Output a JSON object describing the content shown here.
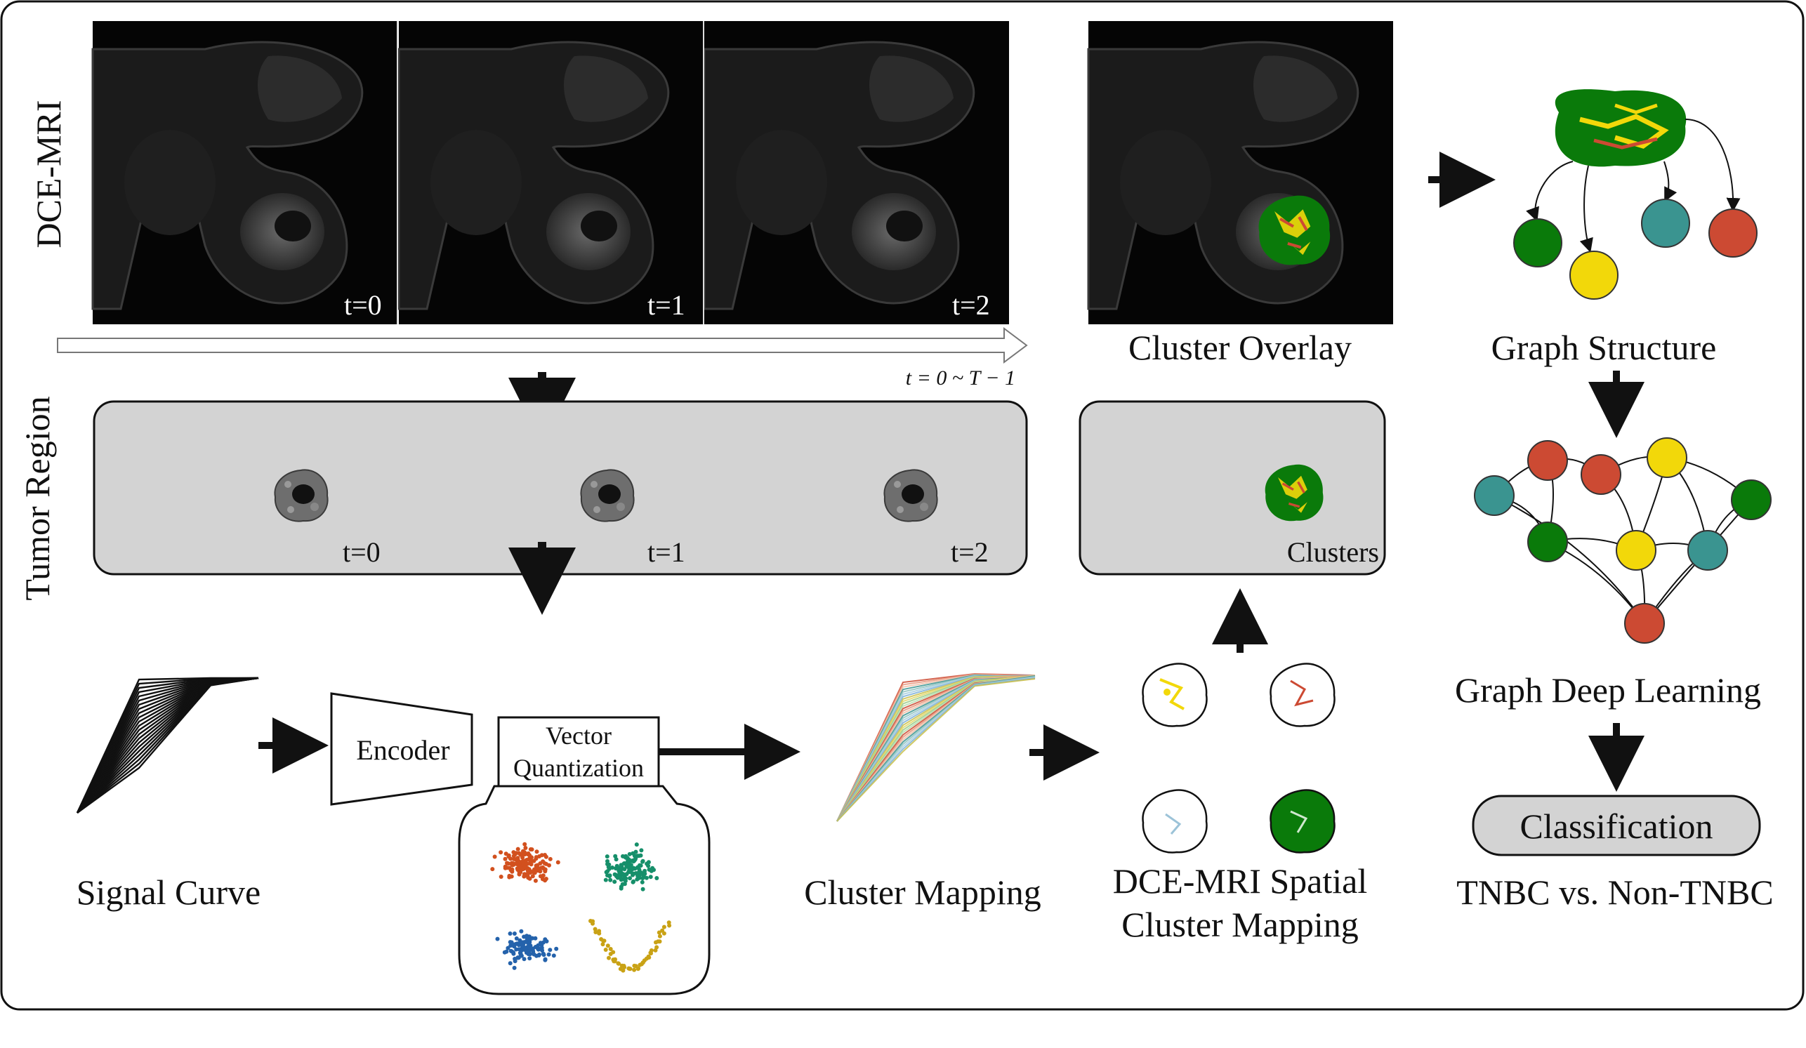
{
  "row_labels": {
    "top": "DCE-MRI",
    "middle": "Tumor Region"
  },
  "time_labels": [
    "t=0",
    "t=1",
    "t=2"
  ],
  "time_axis_label": "t = 0 ~ T − 1",
  "cluster_overlay_label": "Cluster Overlay",
  "clusters_label": "Clusters",
  "graph_structure_label": "Graph Structure",
  "graph_deep_learning_label": "Graph Deep Learning",
  "classification_label": "Classification",
  "result_label": "TNBC vs. Non-TNBC",
  "signal_curve_label": "Signal Curve",
  "encoder_label": "Encoder",
  "vq_label_line1": "Vector",
  "vq_label_line2": "Quantization",
  "cluster_mapping_label": "Cluster Mapping",
  "spatial_mapping_line1": "DCE-MRI Spatial",
  "spatial_mapping_line2": "Cluster Mapping",
  "colors": {
    "green": "#0a7a0a",
    "yellow": "#f2d80a",
    "teal": "#3a9490",
    "red": "#cc4a33",
    "scatter_orange": "#d2501e",
    "scatter_green": "#168f6a",
    "scatter_blue": "#2462ab",
    "scatter_yellow": "#c9a215",
    "panel_gray": "#d3d3d3"
  }
}
